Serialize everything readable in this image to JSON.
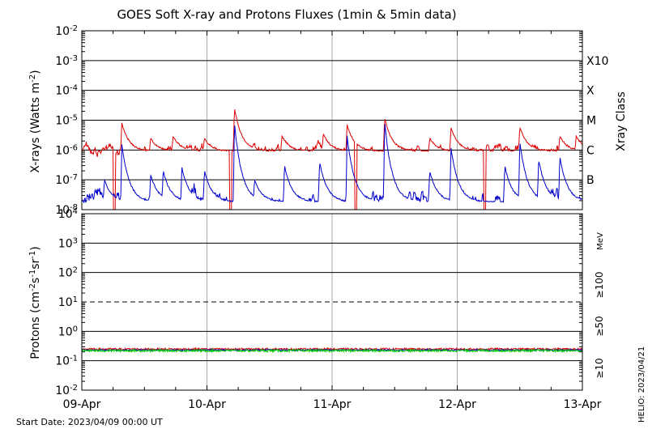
{
  "title": "GOES Soft X-ray and Protons Fluxes   (1min & 5min data)",
  "footer": {
    "start_date": "Start Date: 2023/04/09 00:00 UT",
    "helio": "HELIO: 2023/04/21"
  },
  "colors": {
    "xray_long": "#dd0000",
    "xray_short": "#0000cc",
    "p10": "#dd0000",
    "p50": "#0000cc",
    "p100": "#00cc00"
  },
  "chart_data": [
    {
      "type": "line",
      "panel": "xrays",
      "ylabel_prefix": "X-rays (Watts m",
      "ylabel_sup": "-2",
      "ylabel_suffix": ")",
      "yscale": "log",
      "ylim": [
        1e-08,
        0.01
      ],
      "yticks": [
        {
          "base": "10",
          "exp": "-2",
          "value": 0.01
        },
        {
          "base": "10",
          "exp": "-3",
          "value": 0.001
        },
        {
          "base": "10",
          "exp": "-4",
          "value": 0.0001
        },
        {
          "base": "10",
          "exp": "-5",
          "value": 1e-05
        },
        {
          "base": "10",
          "exp": "-6",
          "value": 1e-06
        },
        {
          "base": "10",
          "exp": "-7",
          "value": 1e-07
        },
        {
          "base": "10",
          "exp": "-8",
          "value": 1e-08
        }
      ],
      "right_axis_title": "Xray Class",
      "classes": [
        {
          "label": "X10",
          "value": 0.001
        },
        {
          "label": "X",
          "value": 0.0001
        },
        {
          "label": "M",
          "value": 1e-05
        },
        {
          "label": "C",
          "value": 1e-06
        },
        {
          "label": "B",
          "value": 1e-07
        }
      ],
      "x_days": [
        0,
        4
      ],
      "series": [
        {
          "key": "long",
          "baseline": 9e-07,
          "noise": 0.18,
          "peaks": [
            {
              "t": 0.32,
              "v": 8e-06
            },
            {
              "t": 0.55,
              "v": 2.5e-06
            },
            {
              "t": 0.73,
              "v": 3e-06
            },
            {
              "t": 0.98,
              "v": 2.5e-06
            },
            {
              "t": 1.22,
              "v": 2.5e-05
            },
            {
              "t": 1.6,
              "v": 3e-06
            },
            {
              "t": 1.93,
              "v": 3.5e-06
            },
            {
              "t": 2.12,
              "v": 7e-06
            },
            {
              "t": 2.42,
              "v": 1.2e-05
            },
            {
              "t": 2.78,
              "v": 2.5e-06
            },
            {
              "t": 2.95,
              "v": 5.5e-06
            },
            {
              "t": 3.5,
              "v": 6e-06
            },
            {
              "t": 3.82,
              "v": 3e-06
            },
            {
              "t": 3.95,
              "v": 3e-06
            }
          ],
          "dips": [
            {
              "t": 0.26,
              "v": 1e-08
            },
            {
              "t": 1.19,
              "v": 1e-08
            },
            {
              "t": 2.19,
              "v": 1e-08
            },
            {
              "t": 3.22,
              "v": 1e-08
            }
          ]
        },
        {
          "key": "short",
          "baseline": 1.8e-08,
          "noise": 0.3,
          "peaks": [
            {
              "t": 0.18,
              "v": 1e-07
            },
            {
              "t": 0.32,
              "v": 1.5e-06
            },
            {
              "t": 0.55,
              "v": 1.5e-07
            },
            {
              "t": 0.65,
              "v": 2e-07
            },
            {
              "t": 0.8,
              "v": 2.5e-07
            },
            {
              "t": 0.98,
              "v": 2e-07
            },
            {
              "t": 1.22,
              "v": 8e-06
            },
            {
              "t": 1.38,
              "v": 1e-07
            },
            {
              "t": 1.62,
              "v": 3e-07
            },
            {
              "t": 1.9,
              "v": 4e-07
            },
            {
              "t": 2.12,
              "v": 3e-06
            },
            {
              "t": 2.42,
              "v": 9e-06
            },
            {
              "t": 2.78,
              "v": 2e-07
            },
            {
              "t": 2.95,
              "v": 1.2e-06
            },
            {
              "t": 3.38,
              "v": 3e-07
            },
            {
              "t": 3.5,
              "v": 2e-06
            },
            {
              "t": 3.65,
              "v": 5e-07
            },
            {
              "t": 3.82,
              "v": 6e-07
            }
          ]
        }
      ]
    },
    {
      "type": "line",
      "panel": "protons",
      "ylabel_prefix": "Protons (cm",
      "ylabel_sup1": "-2",
      "ylabel_mid1": "s",
      "ylabel_sup2": "-1",
      "ylabel_mid2": "sr",
      "ylabel_sup3": "-1",
      "ylabel_suffix": ")",
      "yscale": "log",
      "ylim": [
        0.01,
        10000
      ],
      "yticks": [
        {
          "base": "10",
          "exp": "4",
          "value": 10000
        },
        {
          "base": "10",
          "exp": "3",
          "value": 1000
        },
        {
          "base": "10",
          "exp": "2",
          "value": 100
        },
        {
          "base": "10",
          "exp": "1",
          "value": 10
        },
        {
          "base": "10",
          "exp": "0",
          "value": 1
        },
        {
          "base": "10",
          "exp": "-1",
          "value": 0.1
        },
        {
          "base": "10",
          "exp": "-2",
          "value": 0.01
        }
      ],
      "dashed_threshold": 10,
      "unit_label": "MeV",
      "channels": [
        {
          "label": "≥100",
          "key": "p100"
        },
        {
          "label": "≥50",
          "key": "p50"
        },
        {
          "label": "≥10",
          "key": "p10"
        }
      ],
      "series": [
        {
          "key": "p10",
          "level": 0.25,
          "noise": 0.06
        },
        {
          "key": "p50",
          "level": 0.23,
          "noise": 0.05
        },
        {
          "key": "p100",
          "level": 0.22,
          "noise": 0.08
        }
      ]
    }
  ],
  "xaxis": {
    "ticks": [
      "09-Apr",
      "10-Apr",
      "11-Apr",
      "12-Apr",
      "13-Apr"
    ]
  }
}
